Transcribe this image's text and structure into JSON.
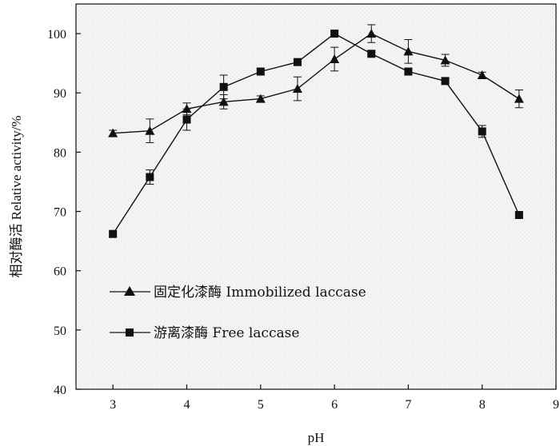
{
  "chart_data": {
    "type": "line",
    "xlabel": "pH",
    "ylabel": "相对酶活 Relative activity/%",
    "xlim": [
      2.5,
      9
    ],
    "ylim": [
      40,
      105
    ],
    "xticks": [
      3,
      4,
      5,
      6,
      7,
      8,
      9
    ],
    "yticks": [
      40,
      50,
      60,
      70,
      80,
      90,
      100
    ],
    "grid": false,
    "legend_position": "lower-left",
    "series": [
      {
        "name": "固定化漆酶 Immobilized laccase",
        "marker": "triangle",
        "color": "#111111",
        "x": [
          3,
          3.5,
          4,
          4.5,
          5,
          5.5,
          6,
          6.5,
          7,
          7.5,
          8,
          8.5
        ],
        "y": [
          83.2,
          83.6,
          87.3,
          88.5,
          89.0,
          90.7,
          95.7,
          100.0,
          97.0,
          95.5,
          93.0,
          89.0
        ],
        "error": [
          0.5,
          2.0,
          1.0,
          1.2,
          0.5,
          2.0,
          2.0,
          1.5,
          2.0,
          1.0,
          0.5,
          1.5
        ]
      },
      {
        "name": "游离漆酶 Free laccase",
        "marker": "square",
        "color": "#111111",
        "x": [
          3,
          3.5,
          4,
          4.5,
          5,
          5.5,
          6,
          6.5,
          7,
          7.5,
          8,
          8.5
        ],
        "y": [
          66.2,
          75.8,
          85.5,
          91.0,
          93.6,
          95.2,
          100.0,
          96.6,
          93.6,
          92.0,
          83.5,
          69.4
        ],
        "error": [
          0.5,
          1.2,
          1.8,
          2.0,
          0.5,
          0.5,
          0.3,
          0.5,
          0.5,
          0.5,
          1.0,
          0.5
        ]
      }
    ]
  }
}
